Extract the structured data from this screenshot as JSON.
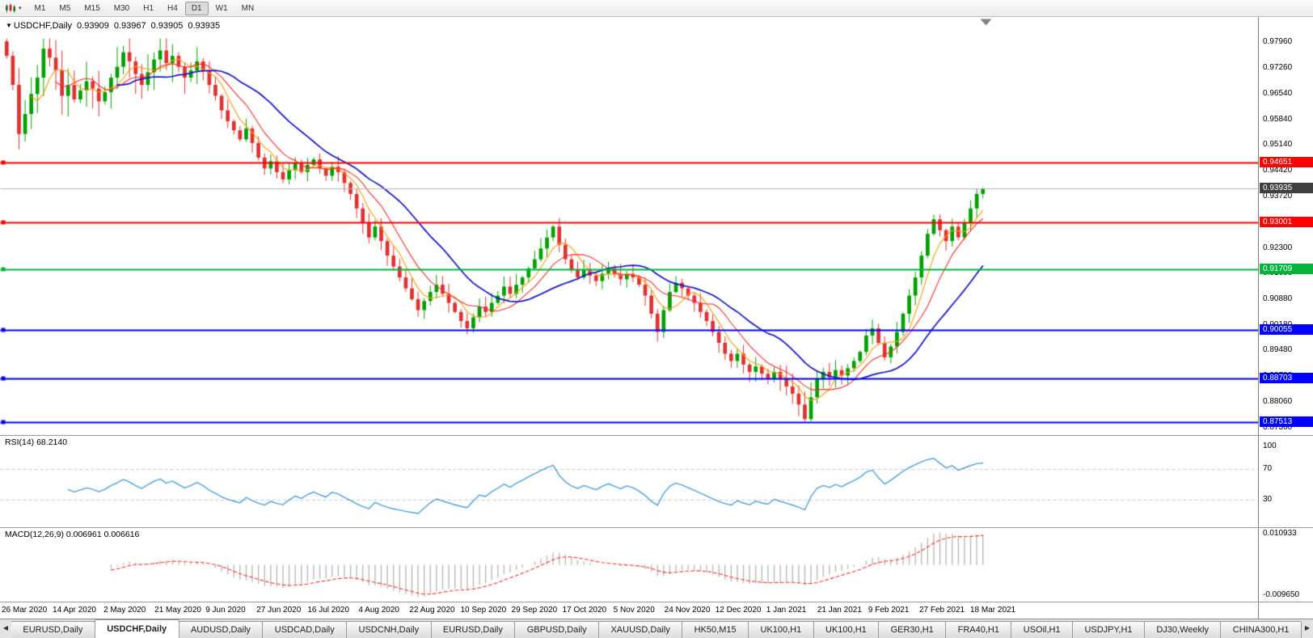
{
  "toolbar": {
    "dropdown_glyph": "▾",
    "timeframes": [
      "M1",
      "M5",
      "M15",
      "M30",
      "H1",
      "H4",
      "D1",
      "W1",
      "MN"
    ],
    "active_timeframe": "D1"
  },
  "chart_title": {
    "marker": "▼",
    "symbol": "USDCHF,Daily",
    "open": "0.93909",
    "high": "0.93967",
    "low": "0.93905",
    "close": "0.93935"
  },
  "chart_data": {
    "type": "candlestick",
    "title": "USDCHF,Daily",
    "y_axis": {
      "range": [
        0.8715,
        0.9866
      ],
      "ticks": [
        "0.97960",
        "0.97260",
        "0.96540",
        "0.95840",
        "0.95140",
        "0.94420",
        "0.93720",
        "0.92300",
        "0.91600",
        "0.90880",
        "0.90180",
        "0.89480",
        "0.88780",
        "0.88060",
        "0.87360"
      ]
    },
    "x_labels": [
      "26 Mar 2020",
      "14 Apr 2020",
      "2 May 2020",
      "21 May 2020",
      "9 Jun 2020",
      "27 Jun 2020",
      "16 Jul 2020",
      "4 Aug 2020",
      "22 Aug 2020",
      "10 Sep 2020",
      "29 Sep 2020",
      "17 Oct 2020",
      "5 Nov 2020",
      "24 Nov 2020",
      "12 Dec 2020",
      "1 Jan 2021",
      "21 Jan 2021",
      "9 Feb 2021",
      "27 Feb 2021",
      "18 Mar 2021"
    ],
    "closes": [
      0.976,
      0.968,
      0.9545,
      0.96,
      0.9655,
      0.97,
      0.978,
      0.9755,
      0.972,
      0.965,
      0.968,
      0.964,
      0.9665,
      0.969,
      0.967,
      0.9635,
      0.966,
      0.97,
      0.973,
      0.977,
      0.9745,
      0.971,
      0.968,
      0.9715,
      0.975,
      0.9775,
      0.974,
      0.976,
      0.973,
      0.97,
      0.972,
      0.9745,
      0.972,
      0.968,
      0.965,
      0.961,
      0.958,
      0.9555,
      0.953,
      0.956,
      0.952,
      0.948,
      0.945,
      0.947,
      0.944,
      0.942,
      0.9445,
      0.9465,
      0.944,
      0.946,
      0.9475,
      0.945,
      0.943,
      0.9455,
      0.944,
      0.941,
      0.938,
      0.934,
      0.93,
      0.926,
      0.929,
      0.925,
      0.921,
      0.918,
      0.915,
      0.912,
      0.909,
      0.906,
      0.9085,
      0.911,
      0.913,
      0.9105,
      0.908,
      0.9055,
      0.903,
      0.901,
      0.904,
      0.907,
      0.9055,
      0.908,
      0.91,
      0.9125,
      0.9105,
      0.913,
      0.915,
      0.9175,
      0.92,
      0.923,
      0.926,
      0.929,
      0.924,
      0.92,
      0.917,
      0.915,
      0.917,
      0.9155,
      0.914,
      0.916,
      0.9175,
      0.916,
      0.9145,
      0.916,
      0.915,
      0.913,
      0.91,
      0.905,
      0.9,
      0.906,
      0.911,
      0.9135,
      0.912,
      0.91,
      0.908,
      0.9055,
      0.903,
      0.9,
      0.897,
      0.894,
      0.892,
      0.894,
      0.891,
      0.889,
      0.8905,
      0.8885,
      0.887,
      0.889,
      0.887,
      0.885,
      0.883,
      0.88,
      0.876,
      0.882,
      0.887,
      0.889,
      0.8875,
      0.8895,
      0.888,
      0.89,
      0.892,
      0.8945,
      0.899,
      0.901,
      0.897,
      0.893,
      0.896,
      0.9,
      0.905,
      0.91,
      0.915,
      0.921,
      0.927,
      0.931,
      0.928,
      0.925,
      0.929,
      0.926,
      0.93,
      0.934,
      0.938,
      0.9394
    ],
    "current_price": {
      "label": "0.93935",
      "value": 0.93935,
      "badge_color": "#404040",
      "line_color": "#b4b4b4"
    },
    "hlines": [
      {
        "label": "0.94651",
        "value": 0.94651,
        "color": "#ff0000"
      },
      {
        "label": "0.93001",
        "value": 0.93001,
        "color": "#ff0000"
      },
      {
        "label": "0.91709",
        "value": 0.91709,
        "color": "#00b43c"
      },
      {
        "label": "0.90055",
        "value": 0.90055,
        "color": "#0000ff"
      },
      {
        "label": "0.88703",
        "value": 0.88703,
        "color": "#0000ff"
      },
      {
        "label": "0.87513",
        "value": 0.87513,
        "color": "#0000ff"
      }
    ],
    "candle_colors": {
      "up": "#00a000",
      "down": "#e03232"
    },
    "moving_averages": [
      {
        "name": "ma-fast",
        "color": "#ff9a00"
      },
      {
        "name": "ma-mid",
        "color": "#ff2a2a"
      },
      {
        "name": "ma-slow",
        "color": "#1414c8"
      }
    ],
    "indicators": [
      {
        "name": "RSI",
        "label": "RSI(14) 68.2140",
        "params": "14",
        "value": "68.2140",
        "ticks": [
          "100",
          "70",
          "30"
        ],
        "levels": [
          70,
          30
        ],
        "range": [
          0,
          100
        ],
        "color": "#4aa0dc"
      },
      {
        "name": "MACD",
        "label": "MACD(12,26,9) 0.006961 0.006616",
        "params": "12,26,9",
        "values": [
          "0.006961",
          "0.006616"
        ],
        "ticks": [
          "0.010933",
          "-0.009650"
        ],
        "histogram_color": "#b4b4b4",
        "signal_color": "#ff3232"
      }
    ]
  },
  "tabs": {
    "left_arrow": "◀",
    "right_arrow": "▶",
    "items": [
      {
        "label": "EURUSD,Daily"
      },
      {
        "label": "USDCHF,Daily",
        "active": true
      },
      {
        "label": "AUDUSD,Daily"
      },
      {
        "label": "USDCAD,Daily"
      },
      {
        "label": "USDCNH,Daily"
      },
      {
        "label": "EURUSD,Daily"
      },
      {
        "label": "GBPUSD,Daily"
      },
      {
        "label": "XAUUSD,Daily"
      },
      {
        "label": "HK50,M15"
      },
      {
        "label": "UK100,H1"
      },
      {
        "label": "UK100,H1"
      },
      {
        "label": "GER30,H1"
      },
      {
        "label": "FRA40,H1"
      },
      {
        "label": "USOil,H1"
      },
      {
        "label": "USDJPY,H1"
      },
      {
        "label": "DJ30,Weekly"
      },
      {
        "label": "CHINA300,H1"
      }
    ]
  }
}
